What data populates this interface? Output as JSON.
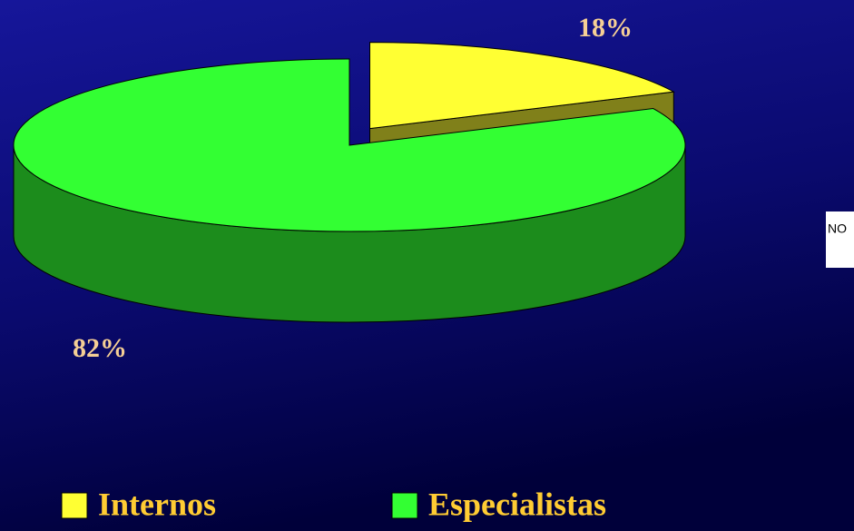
{
  "chart_data": {
    "type": "pie",
    "categories": [
      "Internos",
      "Especialistas"
    ],
    "values": [
      18,
      82
    ],
    "value_labels": [
      "18%",
      "82%"
    ],
    "colors": [
      "#ffff33",
      "#33ff33"
    ],
    "explode": [
      true,
      false
    ],
    "legend": "bottom",
    "annotation": "NO"
  }
}
